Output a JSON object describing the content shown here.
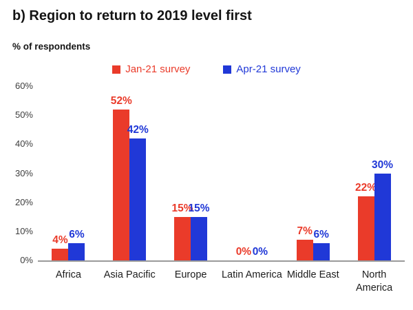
{
  "title": "b) Region to return to 2019 level first",
  "subtitle": "% of respondents",
  "legend": [
    {
      "label": "Jan-21 survey",
      "color": "#ea3b2a"
    },
    {
      "label": "Apr-21 survey",
      "color": "#2038d7"
    }
  ],
  "axis_line_color": "#9a9a9a",
  "chart_data": {
    "type": "bar",
    "categories": [
      "Africa",
      "Asia Pacific",
      "Europe",
      "Latin America",
      "Middle East",
      "North America"
    ],
    "series": [
      {
        "name": "Jan-21 survey",
        "color": "#ea3b2a",
        "values": [
          4,
          52,
          15,
          0,
          7,
          22
        ]
      },
      {
        "name": "Apr-21 survey",
        "color": "#2038d7",
        "values": [
          6,
          42,
          15,
          0,
          6,
          30
        ]
      }
    ],
    "value_suffix": "%",
    "data_labels": true,
    "title": "b) Region to return to 2019 level first",
    "xlabel": "",
    "ylabel": "% of respondents",
    "ylim": [
      0,
      60
    ],
    "yticks": [
      "0%",
      "10%",
      "20%",
      "30%",
      "40%",
      "50%",
      "60%"
    ],
    "grid": false,
    "legend_position": "top"
  }
}
